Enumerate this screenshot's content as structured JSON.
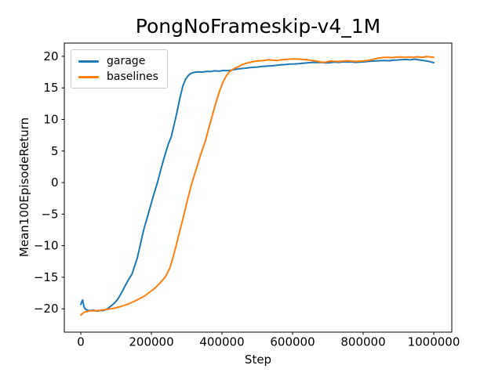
{
  "figure": {
    "background": "#ffffff",
    "text_color": "#000000",
    "spine_color": "#000000"
  },
  "chart_data": {
    "type": "line",
    "title": "PongNoFrameskip-v4_1M",
    "xlabel": "Step",
    "ylabel": "Mean100EpisodeReturn",
    "xlim": [
      -46700,
      1051100
    ],
    "ylim": [
      -23.7,
      22.1
    ],
    "xticks": [
      0,
      200000,
      400000,
      600000,
      800000,
      1000000
    ],
    "yticks": [
      -20,
      -15,
      -10,
      -5,
      0,
      5,
      10,
      15,
      20
    ],
    "grid": false,
    "legend": {
      "position": "upper-left",
      "items": [
        {
          "label": "garage",
          "color": "#1f77b4"
        },
        {
          "label": "baselines",
          "color": "#ff7f0e"
        }
      ]
    },
    "series": [
      {
        "name": "garage",
        "color": "#1f77b4",
        "points": [
          [
            0,
            -19.3
          ],
          [
            5000,
            -18.6
          ],
          [
            9000,
            -19.7
          ],
          [
            14000,
            -20.1
          ],
          [
            20000,
            -20.25
          ],
          [
            27000,
            -20.3
          ],
          [
            34000,
            -20.2
          ],
          [
            41000,
            -20.3
          ],
          [
            48000,
            -20.35
          ],
          [
            55000,
            -20.25
          ],
          [
            62000,
            -20.3
          ],
          [
            70000,
            -20.15
          ],
          [
            76000,
            -20.0
          ],
          [
            82000,
            -19.7
          ],
          [
            88000,
            -19.45
          ],
          [
            95000,
            -19.1
          ],
          [
            103000,
            -18.6
          ],
          [
            110000,
            -18.0
          ],
          [
            118000,
            -17.2
          ],
          [
            127000,
            -16.2
          ],
          [
            136000,
            -15.3
          ],
          [
            145000,
            -14.5
          ],
          [
            152000,
            -13.3
          ],
          [
            160000,
            -12.0
          ],
          [
            168000,
            -10.0
          ],
          [
            174000,
            -8.5
          ],
          [
            180000,
            -7.1
          ],
          [
            188000,
            -5.6
          ],
          [
            196000,
            -4.0
          ],
          [
            205000,
            -2.2
          ],
          [
            217000,
            0.0
          ],
          [
            228000,
            2.3
          ],
          [
            238000,
            4.3
          ],
          [
            248000,
            6.1
          ],
          [
            256000,
            7.2
          ],
          [
            264000,
            9.1
          ],
          [
            272000,
            11.0
          ],
          [
            280000,
            13.2
          ],
          [
            289000,
            15.3
          ],
          [
            297000,
            16.4
          ],
          [
            305000,
            17.0
          ],
          [
            312000,
            17.3
          ],
          [
            320000,
            17.45
          ],
          [
            332000,
            17.55
          ],
          [
            344000,
            17.5
          ],
          [
            356000,
            17.62
          ],
          [
            368000,
            17.58
          ],
          [
            380000,
            17.7
          ],
          [
            392000,
            17.65
          ],
          [
            404000,
            17.75
          ],
          [
            416000,
            17.72
          ],
          [
            428000,
            17.82
          ],
          [
            440000,
            17.95
          ],
          [
            452000,
            18.05
          ],
          [
            465000,
            18.12
          ],
          [
            478000,
            18.2
          ],
          [
            490000,
            18.27
          ],
          [
            502000,
            18.32
          ],
          [
            515000,
            18.4
          ],
          [
            528000,
            18.45
          ],
          [
            541000,
            18.5
          ],
          [
            554000,
            18.58
          ],
          [
            567000,
            18.65
          ],
          [
            580000,
            18.7
          ],
          [
            593000,
            18.77
          ],
          [
            606000,
            18.8
          ],
          [
            619000,
            18.85
          ],
          [
            632000,
            18.92
          ],
          [
            645000,
            18.98
          ],
          [
            658000,
            19.05
          ],
          [
            670000,
            19.02
          ],
          [
            682000,
            19.05
          ],
          [
            694000,
            18.95
          ],
          [
            706000,
            19.0
          ],
          [
            718000,
            19.08
          ],
          [
            730000,
            19.05
          ],
          [
            742000,
            19.12
          ],
          [
            754000,
            19.08
          ],
          [
            766000,
            19.12
          ],
          [
            778000,
            19.05
          ],
          [
            790000,
            19.1
          ],
          [
            802000,
            19.12
          ],
          [
            814000,
            19.2
          ],
          [
            826000,
            19.25
          ],
          [
            838000,
            19.28
          ],
          [
            850000,
            19.32
          ],
          [
            862000,
            19.35
          ],
          [
            874000,
            19.3
          ],
          [
            886000,
            19.4
          ],
          [
            898000,
            19.42
          ],
          [
            910000,
            19.48
          ],
          [
            922000,
            19.5
          ],
          [
            934000,
            19.45
          ],
          [
            946000,
            19.55
          ],
          [
            958000,
            19.45
          ],
          [
            970000,
            19.35
          ],
          [
            982000,
            19.25
          ],
          [
            990000,
            19.15
          ],
          [
            1000000,
            19.0
          ]
        ]
      },
      {
        "name": "baselines",
        "color": "#ff7f0e",
        "points": [
          [
            0,
            -21.0
          ],
          [
            6000,
            -20.7
          ],
          [
            12000,
            -20.5
          ],
          [
            20000,
            -20.38
          ],
          [
            30000,
            -20.3
          ],
          [
            40000,
            -20.32
          ],
          [
            50000,
            -20.25
          ],
          [
            60000,
            -20.2
          ],
          [
            72000,
            -20.1
          ],
          [
            84000,
            -20.0
          ],
          [
            96000,
            -19.9
          ],
          [
            108000,
            -19.72
          ],
          [
            120000,
            -19.52
          ],
          [
            132000,
            -19.3
          ],
          [
            144000,
            -19.0
          ],
          [
            156000,
            -18.7
          ],
          [
            168000,
            -18.35
          ],
          [
            180000,
            -18.0
          ],
          [
            192000,
            -17.5
          ],
          [
            204000,
            -17.0
          ],
          [
            216000,
            -16.4
          ],
          [
            228000,
            -15.7
          ],
          [
            240000,
            -14.9
          ],
          [
            252000,
            -13.6
          ],
          [
            261000,
            -11.9
          ],
          [
            270000,
            -10.0
          ],
          [
            278000,
            -8.2
          ],
          [
            290000,
            -5.6
          ],
          [
            302000,
            -2.8
          ],
          [
            315000,
            0.0
          ],
          [
            328000,
            2.3
          ],
          [
            340000,
            4.5
          ],
          [
            353000,
            6.6
          ],
          [
            362000,
            8.5
          ],
          [
            372000,
            10.5
          ],
          [
            382000,
            12.5
          ],
          [
            392000,
            14.3
          ],
          [
            402000,
            15.8
          ],
          [
            412000,
            16.9
          ],
          [
            422000,
            17.6
          ],
          [
            432000,
            18.0
          ],
          [
            440000,
            18.2
          ],
          [
            448000,
            18.4
          ],
          [
            458000,
            18.7
          ],
          [
            468000,
            18.9
          ],
          [
            480000,
            19.05
          ],
          [
            492000,
            19.2
          ],
          [
            505000,
            19.3
          ],
          [
            518000,
            19.35
          ],
          [
            530000,
            19.45
          ],
          [
            542000,
            19.4
          ],
          [
            555000,
            19.35
          ],
          [
            568000,
            19.45
          ],
          [
            580000,
            19.5
          ],
          [
            592000,
            19.55
          ],
          [
            605000,
            19.6
          ],
          [
            618000,
            19.55
          ],
          [
            630000,
            19.5
          ],
          [
            642000,
            19.45
          ],
          [
            655000,
            19.35
          ],
          [
            668000,
            19.25
          ],
          [
            680000,
            19.1
          ],
          [
            692000,
            19.05
          ],
          [
            705000,
            19.25
          ],
          [
            718000,
            19.22
          ],
          [
            730000,
            19.18
          ],
          [
            742000,
            19.25
          ],
          [
            755000,
            19.3
          ],
          [
            768000,
            19.25
          ],
          [
            780000,
            19.2
          ],
          [
            792000,
            19.25
          ],
          [
            805000,
            19.3
          ],
          [
            818000,
            19.4
          ],
          [
            830000,
            19.55
          ],
          [
            842000,
            19.7
          ],
          [
            855000,
            19.8
          ],
          [
            868000,
            19.85
          ],
          [
            880000,
            19.8
          ],
          [
            892000,
            19.85
          ],
          [
            905000,
            19.9
          ],
          [
            918000,
            19.85
          ],
          [
            930000,
            19.9
          ],
          [
            942000,
            19.85
          ],
          [
            955000,
            19.92
          ],
          [
            968000,
            19.85
          ],
          [
            980000,
            19.95
          ],
          [
            990000,
            19.9
          ],
          [
            1000000,
            19.85
          ]
        ]
      }
    ]
  }
}
